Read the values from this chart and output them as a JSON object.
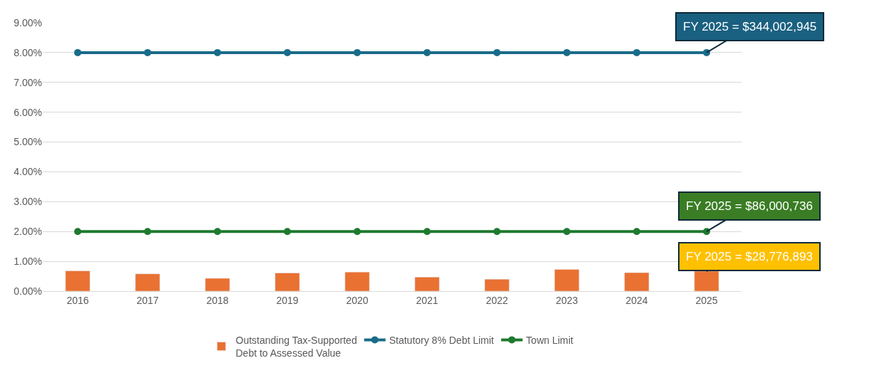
{
  "chart_data": {
    "type": "bar",
    "categories": [
      "2016",
      "2017",
      "2018",
      "2019",
      "2020",
      "2021",
      "2022",
      "2023",
      "2024",
      "2025"
    ],
    "series": [
      {
        "name": "Outstanding Tax-Supported Debt to Assessed Value",
        "color": "#e97132",
        "values": [
          0.68,
          0.58,
          0.43,
          0.61,
          0.64,
          0.47,
          0.4,
          0.73,
          0.62,
          0.67
        ]
      },
      {
        "name": "Statutory 8% Debt Limit",
        "type": "line",
        "color": "#196b8a",
        "values": [
          8,
          8,
          8,
          8,
          8,
          8,
          8,
          8,
          8,
          8
        ]
      },
      {
        "name": "Town Limit",
        "type": "line",
        "color": "#1e7a2e",
        "values": [
          2,
          2,
          2,
          2,
          2,
          2,
          2,
          2,
          2,
          2
        ]
      }
    ],
    "annotations": [
      {
        "text": "FY 2025 = $344,002,945",
        "x": "2025",
        "y": 8
      },
      {
        "text": "FY 2025 = $86,000,736",
        "x": "2025",
        "y": 2
      },
      {
        "text": "FY 2025 = $28,776,893",
        "x": "2025",
        "y": 0.67
      }
    ],
    "ylim": [
      0,
      9
    ],
    "yticks": [
      {
        "value": 0,
        "label": "0.00%"
      },
      {
        "value": 1,
        "label": "1.00%"
      },
      {
        "value": 2,
        "label": "2.00%"
      },
      {
        "value": 3,
        "label": "3.00%"
      },
      {
        "value": 4,
        "label": "4.00%"
      },
      {
        "value": 5,
        "label": "5.00%"
      },
      {
        "value": 6,
        "label": "6.00%"
      },
      {
        "value": 7,
        "label": "7.00%"
      },
      {
        "value": 8,
        "label": "8.00%"
      },
      {
        "value": 9,
        "label": "9.00%"
      }
    ],
    "grid": "y",
    "legend": "bottom",
    "marker": "circle",
    "line_style": "solid"
  }
}
